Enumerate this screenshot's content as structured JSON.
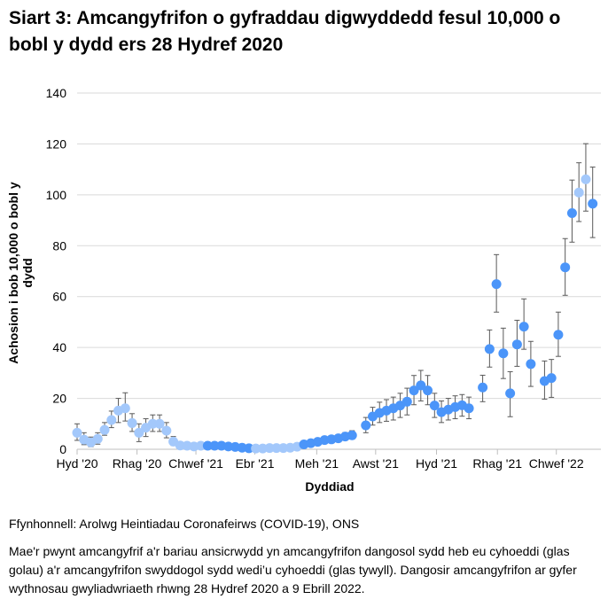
{
  "chart_data": {
    "type": "scatter",
    "title": "Siart 3: Amcangyfrifon o gyfraddau digwyddedd fesul 10,000 o bobl y dydd ers 28 Hydref 2020",
    "xlabel": "Dyddiad",
    "ylabel": "Achosion i bob 10,000 o bobl y dydd",
    "ylim": [
      0,
      140
    ],
    "yticks": [
      0,
      20,
      40,
      60,
      80,
      100,
      120,
      140
    ],
    "xticks": [
      {
        "date": "2020-10-28",
        "label": "Hyd '20"
      },
      {
        "date": "2020-12-28",
        "label": "Rhag '20"
      },
      {
        "date": "2021-02-26",
        "label": "Chwef '21"
      },
      {
        "date": "2021-04-27",
        "label": "Ebr '21"
      },
      {
        "date": "2021-06-29",
        "label": "Meh '21"
      },
      {
        "date": "2021-08-28",
        "label": "Awst '21"
      },
      {
        "date": "2021-10-29",
        "label": "Hyd '21"
      },
      {
        "date": "2021-12-30",
        "label": "Rhag '21"
      },
      {
        "date": "2022-02-28",
        "label": "Chwef '22"
      }
    ],
    "grid": "horizontal",
    "colors": {
      "unpublished": "#a3c8fb",
      "published": "#4b95f9",
      "error_bar": "#595959",
      "grid": "#d9d9d9"
    },
    "points": [
      {
        "date": "2020-10-28",
        "value": 6.5,
        "lower": 3.5,
        "upper": 10,
        "published": false
      },
      {
        "date": "2020-11-04",
        "value": 3.8,
        "lower": 1.8,
        "upper": 6.5,
        "published": false
      },
      {
        "date": "2020-11-11",
        "value": 2.7,
        "lower": 1,
        "upper": 4.8,
        "published": false
      },
      {
        "date": "2020-11-18",
        "value": 4.1,
        "lower": 2,
        "upper": 6.5,
        "published": false
      },
      {
        "date": "2020-11-25",
        "value": 7.6,
        "lower": 5.5,
        "upper": 10.5,
        "published": false
      },
      {
        "date": "2020-12-02",
        "value": 11.5,
        "lower": 8.5,
        "upper": 15,
        "published": false
      },
      {
        "date": "2020-12-09",
        "value": 15.2,
        "lower": 10.5,
        "upper": 20,
        "published": false
      },
      {
        "date": "2020-12-16",
        "value": 16.1,
        "lower": 11.1,
        "upper": 22.2,
        "published": false
      },
      {
        "date": "2020-12-23",
        "value": 10.3,
        "lower": 7,
        "upper": 14,
        "published": false
      },
      {
        "date": "2020-12-30",
        "value": 6.5,
        "lower": 3,
        "upper": 10,
        "published": false
      },
      {
        "date": "2021-01-06",
        "value": 8.5,
        "lower": 5,
        "upper": 12,
        "published": false
      },
      {
        "date": "2021-01-13",
        "value": 10,
        "lower": 7,
        "upper": 13.5,
        "published": false
      },
      {
        "date": "2021-01-20",
        "value": 10,
        "lower": 7,
        "upper": 13.5,
        "published": false
      },
      {
        "date": "2021-01-27",
        "value": 7.3,
        "lower": 4.5,
        "upper": 10.5,
        "published": false
      },
      {
        "date": "2021-02-03",
        "value": 3,
        "lower": 1.5,
        "upper": 5,
        "published": false
      },
      {
        "date": "2021-02-10",
        "value": 1.5,
        "lower": 0.8,
        "upper": 2.5,
        "published": false
      },
      {
        "date": "2021-02-17",
        "value": 1.4,
        "lower": 0.8,
        "upper": 2.2,
        "published": false
      },
      {
        "date": "2021-02-24",
        "value": 1.1,
        "lower": 0.6,
        "upper": 1.8,
        "published": false
      },
      {
        "date": "2021-03-03",
        "value": 1.4,
        "lower": 0.8,
        "upper": 2.2,
        "published": false
      },
      {
        "date": "2021-03-10",
        "value": 1.4,
        "lower": 0.9,
        "upper": 2.1,
        "published": true
      },
      {
        "date": "2021-03-17",
        "value": 1.4,
        "lower": 0.9,
        "upper": 2.1,
        "published": true
      },
      {
        "date": "2021-03-24",
        "value": 1.4,
        "lower": 0.9,
        "upper": 2.1,
        "published": true
      },
      {
        "date": "2021-03-31",
        "value": 1.1,
        "lower": 0.7,
        "upper": 1.7,
        "published": true
      },
      {
        "date": "2021-04-07",
        "value": 0.9,
        "lower": 0.5,
        "upper": 1.4,
        "published": true
      },
      {
        "date": "2021-04-14",
        "value": 0.6,
        "lower": 0.3,
        "upper": 1,
        "published": true
      },
      {
        "date": "2021-04-21",
        "value": 0.4,
        "lower": 0.2,
        "upper": 0.8,
        "published": true
      },
      {
        "date": "2021-04-28",
        "value": 0.3,
        "lower": 0.1,
        "upper": 0.6,
        "published": false
      },
      {
        "date": "2021-05-05",
        "value": 0.3,
        "lower": 0.1,
        "upper": 0.6,
        "published": false
      },
      {
        "date": "2021-05-12",
        "value": 0.5,
        "lower": 0.2,
        "upper": 0.9,
        "published": false
      },
      {
        "date": "2021-05-19",
        "value": 0.5,
        "lower": 0.2,
        "upper": 0.9,
        "published": false
      },
      {
        "date": "2021-05-26",
        "value": 0.5,
        "lower": 0.2,
        "upper": 0.9,
        "published": false
      },
      {
        "date": "2021-06-02",
        "value": 0.6,
        "lower": 0.3,
        "upper": 1,
        "published": false
      },
      {
        "date": "2021-06-09",
        "value": 1,
        "lower": 0.6,
        "upper": 1.6,
        "published": false
      },
      {
        "date": "2021-06-16",
        "value": 1.9,
        "lower": 1.2,
        "upper": 2.8,
        "published": true
      },
      {
        "date": "2021-06-23",
        "value": 2.4,
        "lower": 1.6,
        "upper": 3.4,
        "published": true
      },
      {
        "date": "2021-06-30",
        "value": 2.9,
        "lower": 2,
        "upper": 4,
        "published": true
      },
      {
        "date": "2021-07-07",
        "value": 3.6,
        "lower": 2.6,
        "upper": 4.8,
        "published": true
      },
      {
        "date": "2021-07-14",
        "value": 3.9,
        "lower": 2.8,
        "upper": 5.2,
        "published": true
      },
      {
        "date": "2021-07-21",
        "value": 4.3,
        "lower": 3.1,
        "upper": 5.7,
        "published": true
      },
      {
        "date": "2021-07-28",
        "value": 5,
        "lower": 3.7,
        "upper": 6.6,
        "published": true
      },
      {
        "date": "2021-08-04",
        "value": 5.5,
        "lower": 4,
        "upper": 7.3,
        "published": true
      },
      {
        "date": "2021-08-18",
        "value": 9.4,
        "lower": 6.5,
        "upper": 12.5,
        "published": true
      },
      {
        "date": "2021-08-25",
        "value": 12.9,
        "lower": 9.5,
        "upper": 16.5,
        "published": true
      },
      {
        "date": "2021-09-01",
        "value": 14.3,
        "lower": 10.5,
        "upper": 18.5,
        "published": true
      },
      {
        "date": "2021-09-08",
        "value": 15.2,
        "lower": 11,
        "upper": 19.5,
        "published": true
      },
      {
        "date": "2021-09-15",
        "value": 16.1,
        "lower": 11.5,
        "upper": 20.5,
        "published": true
      },
      {
        "date": "2021-09-22",
        "value": 17.2,
        "lower": 12.5,
        "upper": 22,
        "published": true
      },
      {
        "date": "2021-09-29",
        "value": 18.7,
        "lower": 13.5,
        "upper": 24,
        "published": true
      },
      {
        "date": "2021-10-06",
        "value": 23.1,
        "lower": 17.5,
        "upper": 29,
        "published": true
      },
      {
        "date": "2021-10-13",
        "value": 25.1,
        "lower": 19,
        "upper": 31,
        "published": true
      },
      {
        "date": "2021-10-20",
        "value": 23.1,
        "lower": 17.5,
        "upper": 29,
        "published": true
      },
      {
        "date": "2021-10-27",
        "value": 17.2,
        "lower": 12.5,
        "upper": 22,
        "published": true
      },
      {
        "date": "2021-11-03",
        "value": 14.6,
        "lower": 10.5,
        "upper": 19,
        "published": true
      },
      {
        "date": "2021-11-10",
        "value": 15.6,
        "lower": 11.5,
        "upper": 20,
        "published": true
      },
      {
        "date": "2021-11-17",
        "value": 16.6,
        "lower": 12,
        "upper": 21,
        "published": true
      },
      {
        "date": "2021-11-24",
        "value": 17.3,
        "lower": 13,
        "upper": 21.5,
        "published": true
      },
      {
        "date": "2021-12-01",
        "value": 16.1,
        "lower": 12,
        "upper": 20.5,
        "published": true
      },
      {
        "date": "2021-12-15",
        "value": 24.3,
        "lower": 18.7,
        "upper": 29.1,
        "published": true
      },
      {
        "date": "2021-12-22",
        "value": 39.4,
        "lower": 32.3,
        "upper": 46.9,
        "published": true
      },
      {
        "date": "2021-12-29",
        "value": 64.9,
        "lower": 53.9,
        "upper": 76.5,
        "published": true
      },
      {
        "date": "2022-01-05",
        "value": 37.7,
        "lower": 27.8,
        "upper": 47.6,
        "published": true
      },
      {
        "date": "2022-01-12",
        "value": 22,
        "lower": 12.8,
        "upper": 30.5,
        "published": true
      },
      {
        "date": "2022-01-19",
        "value": 41.2,
        "lower": 32.6,
        "upper": 50.7,
        "published": true
      },
      {
        "date": "2022-01-26",
        "value": 48.2,
        "lower": 39.3,
        "upper": 59.1,
        "published": true
      },
      {
        "date": "2022-02-02",
        "value": 33.5,
        "lower": 24.7,
        "upper": 42.4,
        "published": true
      },
      {
        "date": "2022-02-16",
        "value": 26.8,
        "lower": 19.7,
        "upper": 34.7,
        "published": true
      },
      {
        "date": "2022-02-23",
        "value": 28,
        "lower": 20.4,
        "upper": 35.3,
        "published": true
      },
      {
        "date": "2022-03-02",
        "value": 45,
        "lower": 36.5,
        "upper": 53.9,
        "published": true
      },
      {
        "date": "2022-03-09",
        "value": 71.5,
        "lower": 60.5,
        "upper": 82.8,
        "published": true
      },
      {
        "date": "2022-03-16",
        "value": 92.8,
        "lower": 81.4,
        "upper": 105.8,
        "published": true
      },
      {
        "date": "2022-03-23",
        "value": 100.9,
        "lower": 89.5,
        "upper": 112.6,
        "published": false
      },
      {
        "date": "2022-03-30",
        "value": 106.1,
        "lower": 93.6,
        "upper": 120.1,
        "published": false
      },
      {
        "date": "2022-04-06",
        "value": 96.5,
        "lower": 83.2,
        "upper": 110.9,
        "published": true
      }
    ]
  },
  "title": "Siart 3: Amcangyfrifon o gyfraddau digwyddedd fesul 10,000 o bobl y dydd ers 28 Hydref 2020",
  "ylabel": "Achosion i bob 10,000 o bobl y dydd",
  "xlabel": "Dyddiad",
  "source": "Ffynhonnell: Arolwg Heintiadau Coronafeirws (COVID-19), ONS",
  "note": "Mae'r pwynt amcangyfrif a'r bariau ansicrwydd yn amcangyfrifon dangosol sydd heb eu cyhoeddi (glas golau) a'r amcangyfrifon swyddogol sydd wedi’u cyhoeddi (glas tywyll). Dangosir amcangyfrifon ar gyfer wythnosau gwyliadwriaeth rhwng 28 Hydref 2020 a 9 Ebrill 2022."
}
